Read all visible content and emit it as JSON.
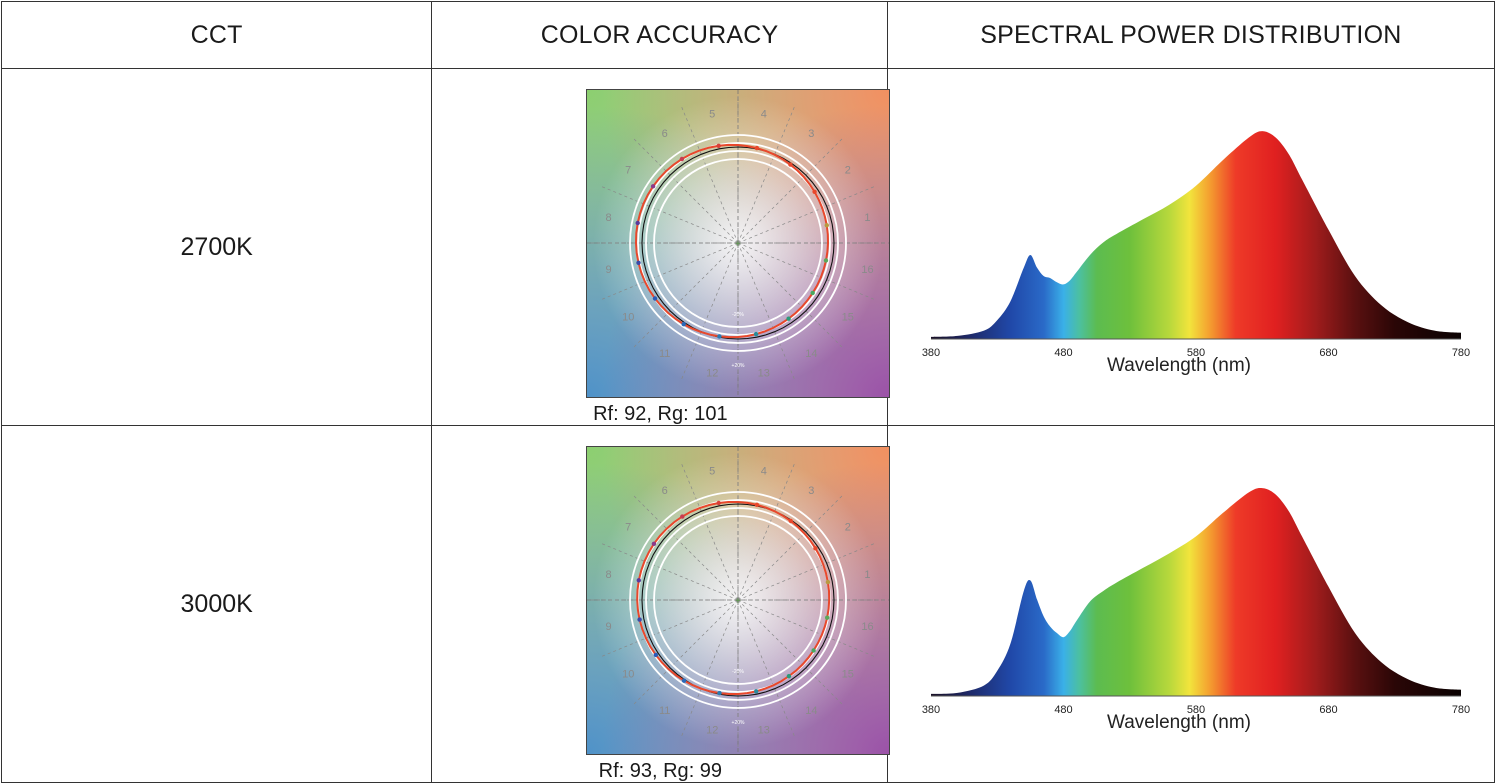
{
  "headers": {
    "cct": "CCT",
    "accuracy": "COLOR ACCURACY",
    "spd": "SPECTRAL POWER DISTRIBUTION"
  },
  "rows": [
    {
      "cct": "2700K",
      "rf_label": "Rf",
      "rf_value": ": 92, ",
      "rg_label": "Rg",
      "rg_value": ": 101",
      "hue_bins": [
        "5",
        "4",
        "3",
        "2",
        "1",
        "16",
        "15",
        "14",
        "13",
        "12",
        "11",
        "10",
        "9",
        "8",
        "7",
        "6"
      ],
      "ring_labels": [
        "-20%",
        "+20%"
      ],
      "spd_chart": {
        "type": "area",
        "xlabel": "Wavelength (nm)",
        "xticks": [
          "380",
          "480",
          "580",
          "680",
          "780"
        ],
        "xlim": [
          380,
          780
        ],
        "ylim": [
          0,
          1
        ],
        "x": [
          380,
          400,
          420,
          430,
          440,
          450,
          455,
          460,
          465,
          470,
          475,
          480,
          485,
          490,
          500,
          510,
          520,
          540,
          560,
          580,
          600,
          620,
          630,
          640,
          650,
          660,
          680,
          700,
          720,
          740,
          760,
          780
        ],
        "values": [
          0.01,
          0.015,
          0.04,
          0.09,
          0.18,
          0.34,
          0.4,
          0.34,
          0.3,
          0.29,
          0.27,
          0.26,
          0.28,
          0.32,
          0.4,
          0.46,
          0.5,
          0.57,
          0.64,
          0.73,
          0.85,
          0.96,
          0.99,
          0.96,
          0.88,
          0.76,
          0.52,
          0.3,
          0.16,
          0.08,
          0.04,
          0.03
        ]
      }
    },
    {
      "cct": "3000K",
      "rf_label": "Rf",
      "rf_value": ": 93, ",
      "rg_label": "Rg",
      "rg_value": ": 99",
      "hue_bins": [
        "5",
        "4",
        "3",
        "2",
        "1",
        "16",
        "15",
        "14",
        "13",
        "12",
        "11",
        "10",
        "9",
        "8",
        "7",
        "6"
      ],
      "ring_labels": [
        "-20%",
        "+20%"
      ],
      "spd_chart": {
        "type": "area",
        "xlabel": "Wavelength (nm)",
        "xticks": [
          "380",
          "480",
          "580",
          "680",
          "780"
        ],
        "xlim": [
          380,
          780
        ],
        "ylim": [
          0,
          1
        ],
        "x": [
          380,
          400,
          420,
          430,
          440,
          450,
          455,
          460,
          465,
          470,
          475,
          480,
          485,
          490,
          500,
          510,
          520,
          540,
          560,
          580,
          600,
          620,
          630,
          640,
          650,
          660,
          680,
          700,
          720,
          740,
          760,
          780
        ],
        "values": [
          0.01,
          0.015,
          0.05,
          0.12,
          0.25,
          0.5,
          0.55,
          0.46,
          0.38,
          0.33,
          0.3,
          0.28,
          0.31,
          0.36,
          0.45,
          0.5,
          0.54,
          0.61,
          0.68,
          0.76,
          0.87,
          0.97,
          0.99,
          0.96,
          0.88,
          0.76,
          0.52,
          0.3,
          0.16,
          0.08,
          0.04,
          0.03
        ]
      }
    }
  ]
}
